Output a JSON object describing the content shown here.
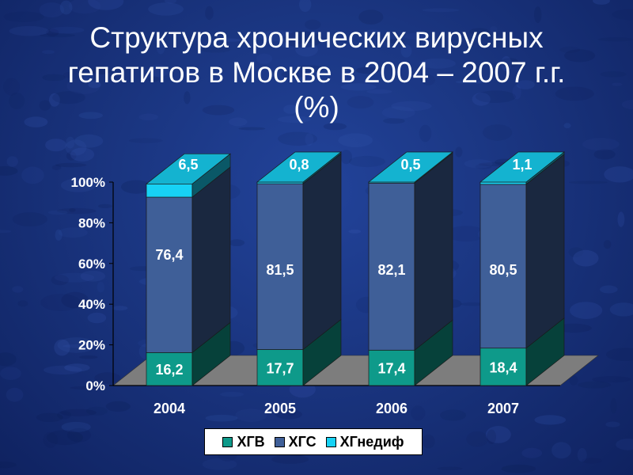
{
  "title": {
    "line1": "Структура хронических вирусных",
    "line2": "гепатитов в Москве в 2004 – 2007 г.г.",
    "line3": "(%)"
  },
  "colors": {
    "hgv": "#0e9a8a",
    "hgs": "#3f5f98",
    "hg_nedif": "#17d2f5"
  },
  "chart_data": {
    "type": "bar",
    "stacked": true,
    "categories": [
      "2004",
      "2005",
      "2006",
      "2007"
    ],
    "series": [
      {
        "name": "ХГВ",
        "values": [
          16.2,
          17.7,
          17.4,
          18.4
        ],
        "labels": [
          "16,2",
          "17,7",
          "17,4",
          "18,4"
        ]
      },
      {
        "name": "ХГС",
        "values": [
          76.4,
          81.5,
          82.1,
          80.5
        ],
        "labels": [
          "76,4",
          "81,5",
          "82,1",
          "80,5"
        ]
      },
      {
        "name": "ХГнедиф",
        "values": [
          6.5,
          0.8,
          0.5,
          1.1
        ],
        "labels": [
          "6,5",
          "0,8",
          "0,5",
          "1,1"
        ]
      }
    ],
    "yticks": [
      "0%",
      "20%",
      "40%",
      "60%",
      "80%",
      "100%"
    ],
    "ylim": [
      0,
      100
    ],
    "legend_position": "bottom"
  }
}
